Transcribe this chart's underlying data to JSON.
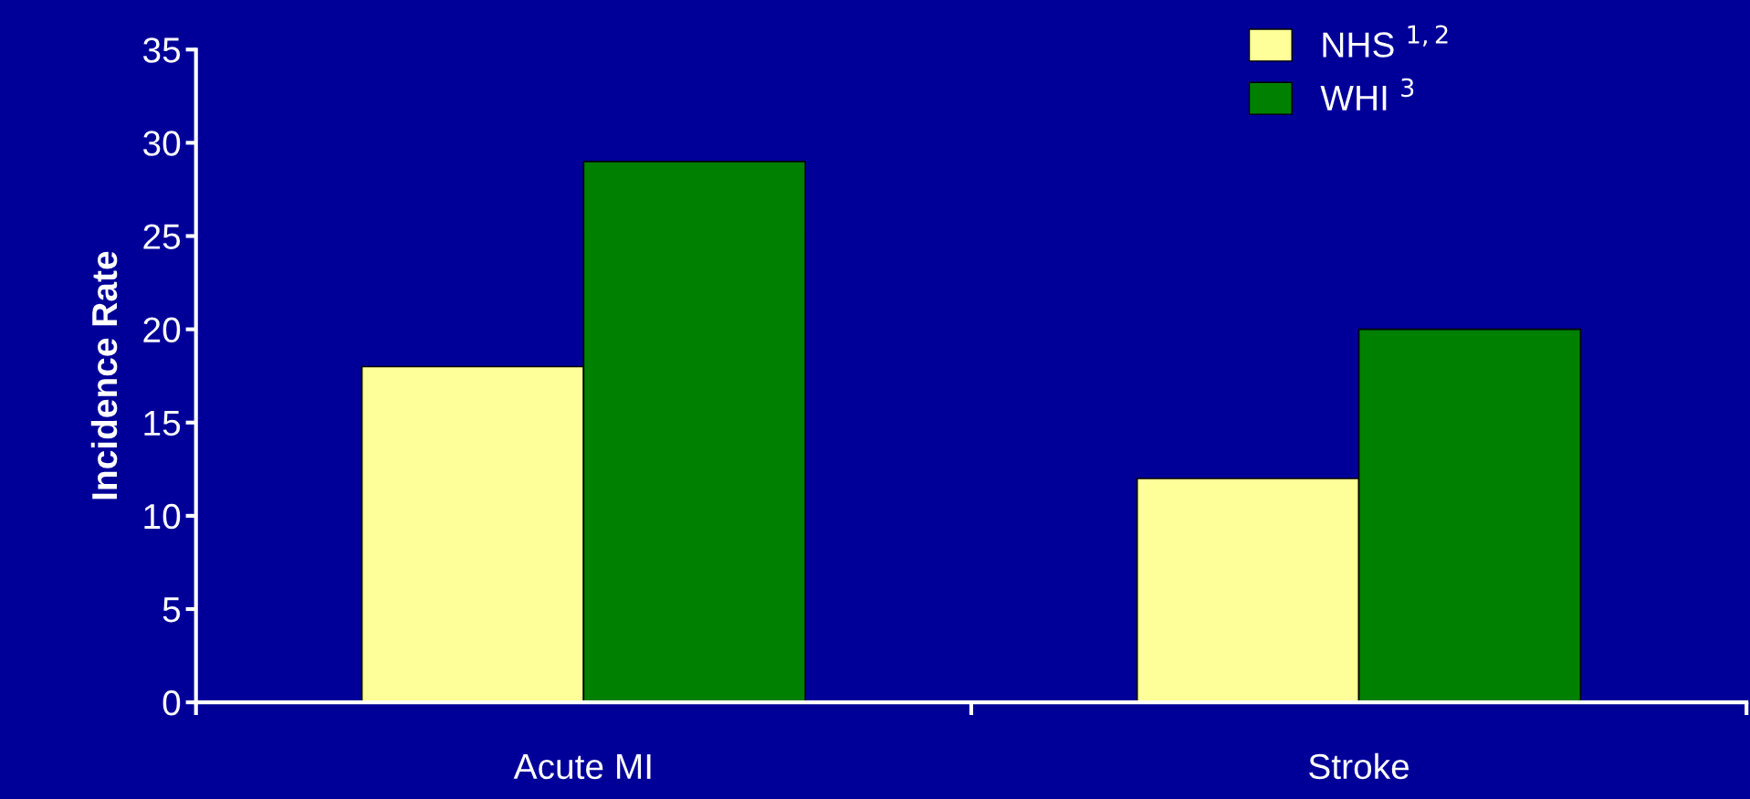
{
  "chart_data": {
    "type": "bar",
    "ylabel": "Incidence Rate",
    "categories": [
      "Acute MI",
      "Stroke"
    ],
    "series": [
      {
        "name": "NHS $^{1,2}$",
        "color": "#ffff99",
        "values": [
          18,
          12
        ]
      },
      {
        "name": "WHI $^{3}$",
        "color": "#008000",
        "values": [
          29,
          20
        ]
      }
    ],
    "ylim": [
      0,
      35
    ],
    "yticks": [
      0,
      5,
      10,
      15,
      20,
      25,
      30,
      35
    ],
    "grid": false,
    "legend": "top right"
  }
}
